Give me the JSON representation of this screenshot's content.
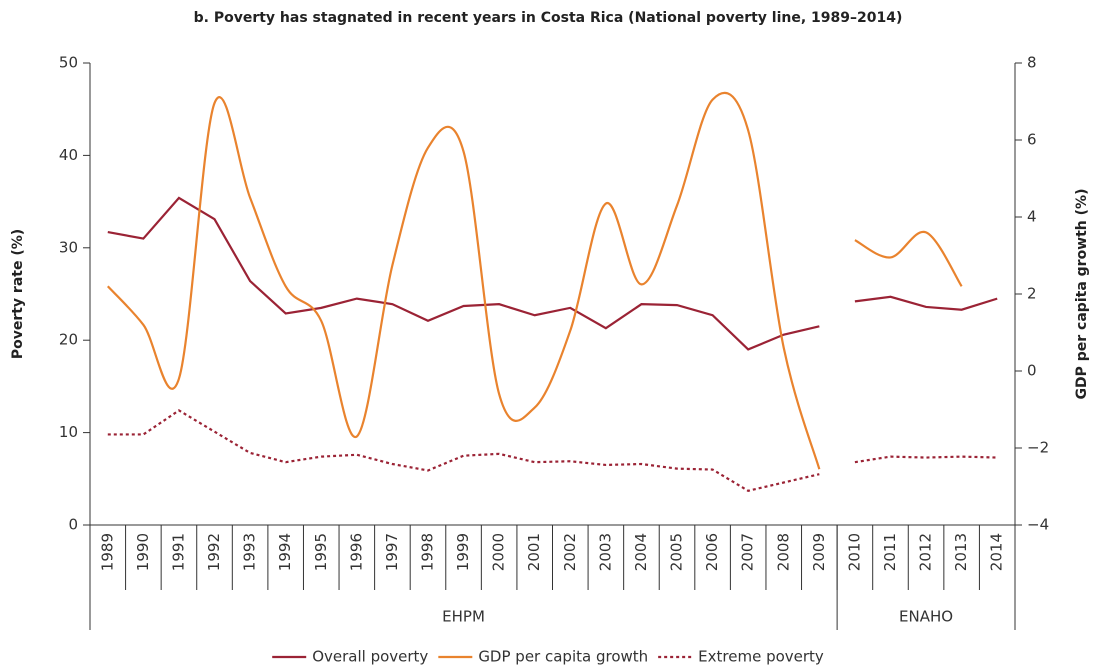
{
  "chart_data": {
    "type": "line",
    "title": "b. Poverty has stagnated in recent years in Costa Rica (National poverty line, 1989–2014)",
    "ylabel": "Poverty rate  (%)",
    "y2label": "GDP per capita growth (%)",
    "categories": [
      "1989",
      "1990",
      "1991",
      "1992",
      "1993",
      "1994",
      "1995",
      "1996",
      "1997",
      "1998",
      "1999",
      "2000",
      "2001",
      "2002",
      "2003",
      "2004",
      "2005",
      "2006",
      "2007",
      "2008",
      "2009",
      "2010",
      "2011",
      "2012",
      "2013",
      "2014"
    ],
    "groups": [
      {
        "label": "EHPM",
        "span": 21
      },
      {
        "label": "ENAHO",
        "span": 5
      }
    ],
    "series": [
      {
        "name": "Overall poverty",
        "color": "#9b2335",
        "dash": "solid",
        "values": [
          31.7,
          31.0,
          35.4,
          33.1,
          26.4,
          22.9,
          23.5,
          24.5,
          23.9,
          22.1,
          23.7,
          23.9,
          22.7,
          23.5,
          21.3,
          23.9,
          23.8,
          22.7,
          19.0,
          20.6,
          21.5,
          24.2,
          24.7,
          23.6,
          23.3,
          24.5
        ]
      },
      {
        "name": "GDP per capita growth",
        "color": "#e9832e",
        "dash": "solid",
        "axis": "y2",
        "smooth": true,
        "values": [
          2.2,
          1.2,
          -0.2,
          6.96,
          4.5,
          2.2,
          1.3,
          -1.7,
          2.75,
          5.8,
          5.7,
          -0.6,
          -0.95,
          1.05,
          4.35,
          2.25,
          4.3,
          7.05,
          6.25,
          0.6,
          -2.55,
          3.4,
          2.95,
          3.6,
          2.2,
          null
        ]
      },
      {
        "name": "Extreme poverty",
        "color": "#9b2335",
        "dash": "dotted",
        "values": [
          9.8,
          9.8,
          12.4,
          10.1,
          7.8,
          6.8,
          7.4,
          7.6,
          6.6,
          5.9,
          7.5,
          7.7,
          6.8,
          6.9,
          6.5,
          6.6,
          6.1,
          6.0,
          3.7,
          4.6,
          5.5,
          6.8,
          7.4,
          7.3,
          7.4,
          7.3
        ]
      }
    ],
    "ylim": [
      0,
      50
    ],
    "yticks": [
      0,
      10,
      20,
      30,
      40,
      50
    ],
    "y2lim": [
      -4,
      8
    ],
    "y2ticks": [
      {
        "value": -4,
        "label": "−4"
      },
      {
        "value": -2,
        "label": "−2"
      },
      0,
      2,
      4,
      6,
      8
    ],
    "grid": false,
    "legend": "bottom"
  }
}
